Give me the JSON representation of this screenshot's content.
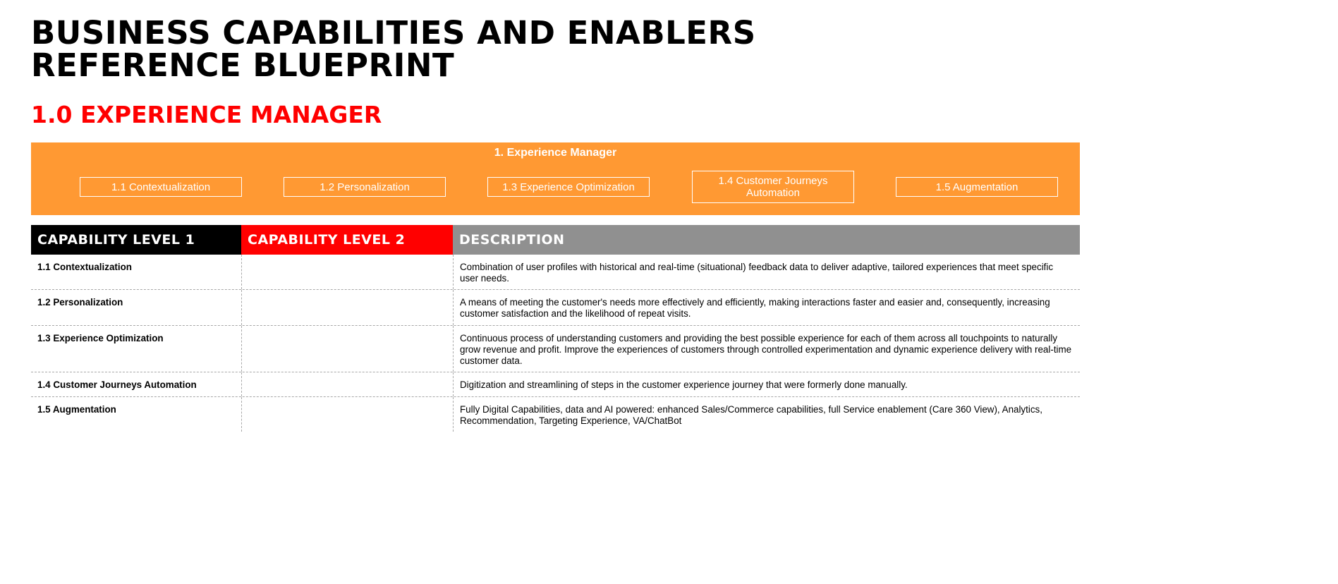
{
  "header": {
    "title_line1": "BUSINESS CAPABILITIES AND ENABLERS",
    "title_line2": "REFERENCE BLUEPRINT",
    "section_title": "1.0 EXPERIENCE MANAGER"
  },
  "banner": {
    "title": "1. Experience Manager",
    "capabilities": [
      "1.1 Contextualization",
      "1.2 Personalization",
      "1.3 Experience Optimization",
      "1.4 Customer Journeys Automation",
      "1.5 Augmentation"
    ]
  },
  "table": {
    "headers": [
      "CAPABILITY LEVEL 1",
      "CAPABILITY LEVEL 2",
      "DESCRIPTION"
    ],
    "rows": [
      {
        "level1": "1.1  Contextualization",
        "level2": "",
        "description": "Combination of user profiles with historical and real-time (situational) feedback data to deliver adaptive, tailored experiences that meet specific user needs."
      },
      {
        "level1": "1.2 Personalization",
        "level2": "",
        "description": "A means of meeting the customer's needs more effectively and efficiently, making interactions faster and easier and, consequently, increasing customer satisfaction and the likelihood of repeat visits."
      },
      {
        "level1": "1.3 Experience Optimization",
        "level2": "",
        "description": "Continuous process of understanding customers and providing the best possible experience for each of them across all touchpoints to naturally grow revenue and profit. Improve the experiences of customers through controlled experimentation and dynamic experience delivery with real-time customer data."
      },
      {
        "level1": "1.4 Customer Journeys Automation",
        "level2": "",
        "description": "Digitization and streamlining of steps in the customer experience journey that were formerly done manually."
      },
      {
        "level1": "1.5 Augmentation",
        "level2": "",
        "description": "Fully Digital Capabilities, data and AI powered: enhanced Sales/Commerce capabilities, full Service enablement (Care 360 View), Analytics, Recommendation, Targeting Experience, VA/ChatBot"
      }
    ]
  },
  "colors": {
    "banner": "#ff9933",
    "accent_red": "#ff0000",
    "header_black": "#000000",
    "header_gray": "#909090"
  }
}
